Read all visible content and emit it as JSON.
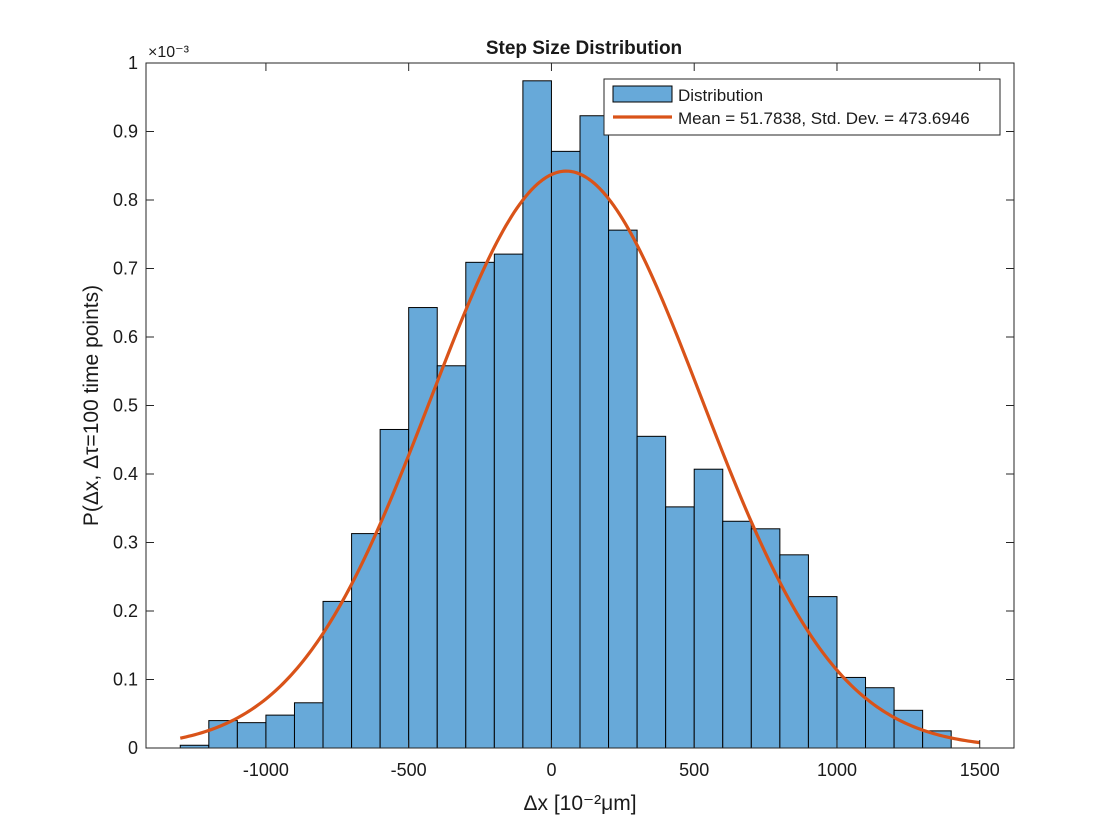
{
  "chart_data": {
    "type": "bar",
    "title": "Step Size Distribution",
    "xlabel": "Δx [10⁻²μm]",
    "ylabel": "P(Δx, Δτ=100 time points)",
    "y_exponent_label": "×10⁻³",
    "y_exponent": -3,
    "xlim": [
      -1420,
      1620
    ],
    "ylim": [
      0,
      1.0
    ],
    "x_ticks": [
      -1000,
      -500,
      0,
      500,
      1000,
      1500
    ],
    "x_tick_labels": [
      "-1000",
      "-500",
      "0",
      "500",
      "1000",
      "1500"
    ],
    "y_ticks": [
      0,
      0.1,
      0.2,
      0.3,
      0.4,
      0.5,
      0.6,
      0.7,
      0.8,
      0.9,
      1.0
    ],
    "y_tick_labels": [
      "0",
      "0.1",
      "0.2",
      "0.3",
      "0.4",
      "0.5",
      "0.6",
      "0.7",
      "0.8",
      "0.9",
      "1"
    ],
    "grid": false,
    "legend_position": "top-right",
    "series": [
      {
        "name": "Distribution",
        "kind": "histogram",
        "color": "#67a9d9",
        "edge_color": "#000000",
        "bin_edges": [
          -1300,
          -1200,
          -1100,
          -1000,
          -900,
          -800,
          -700,
          -600,
          -500,
          -400,
          -300,
          -200,
          -100,
          0,
          100,
          200,
          300,
          400,
          500,
          600,
          700,
          800,
          900,
          1000,
          1100,
          1200,
          1300,
          1400
        ],
        "values": [
          0.004,
          0.04,
          0.037,
          0.048,
          0.066,
          0.214,
          0.313,
          0.465,
          0.643,
          0.558,
          0.709,
          0.721,
          0.974,
          0.871,
          0.923,
          0.756,
          0.455,
          0.352,
          0.407,
          0.331,
          0.32,
          0.282,
          0.221,
          0.103,
          0.088,
          0.055,
          0.025
        ]
      },
      {
        "name": "Mean = 51.7838, Std. Dev. = 473.6946",
        "kind": "normal_fit",
        "color": "#d95319",
        "mean": 51.7838,
        "std": 473.6946,
        "x_range": [
          -1300,
          1500
        ]
      }
    ]
  }
}
